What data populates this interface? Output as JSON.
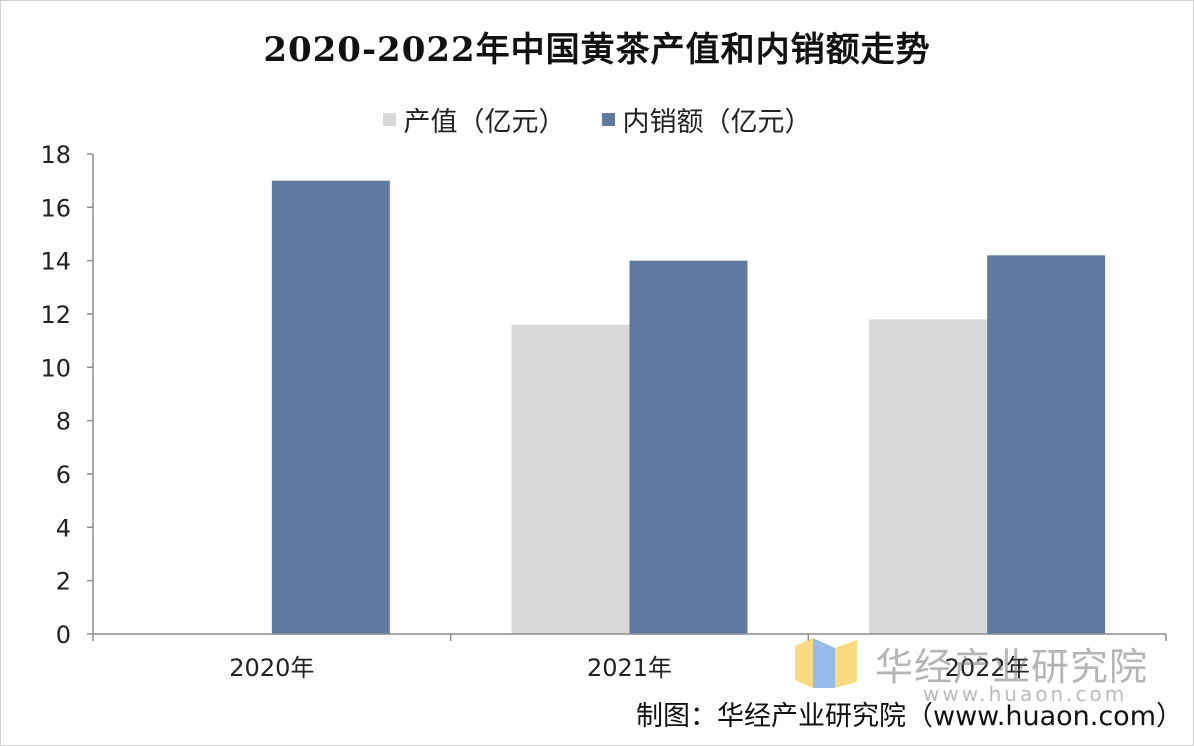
{
  "chart_data": {
    "type": "bar",
    "title": "2020-2022年中国黄茶产值和内销额走势",
    "categories": [
      "2020年",
      "2021年",
      "2022年"
    ],
    "series": [
      {
        "name": "产值（亿元）",
        "values": [
          null,
          11.6,
          11.8
        ],
        "color": "#d9d9d9"
      },
      {
        "name": "内销额（亿元）",
        "values": [
          17.0,
          14.0,
          14.2
        ],
        "color": "#60799f"
      }
    ],
    "yticks": [
      "0",
      "2",
      "4",
      "6",
      "8",
      "10",
      "12",
      "14",
      "16",
      "18"
    ],
    "ylim": [
      0,
      18
    ],
    "grid": false,
    "legend": "top"
  },
  "footer": {
    "credit": "制图：华经产业研究院（www.huaon.com）"
  },
  "watermark": {
    "cn": "华经产业研究院",
    "en": "www.huaon.com"
  }
}
